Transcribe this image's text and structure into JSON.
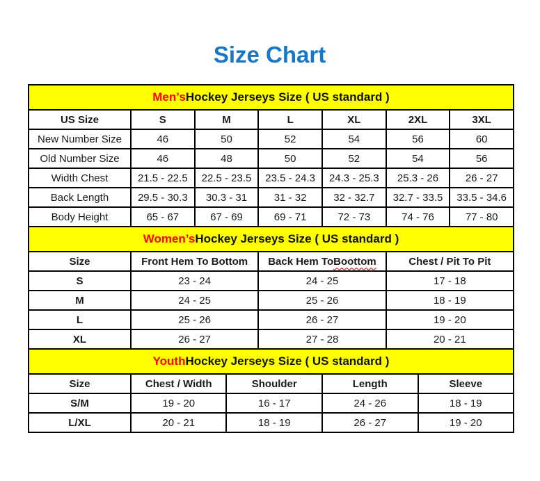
{
  "page": {
    "title": "Size Chart",
    "title_color": "#1777c4",
    "band_bg_color": "#ffff00",
    "accent_red_color": "#ff0000",
    "border_color": "#000000"
  },
  "mens": {
    "band": {
      "prefix": "Men’s",
      "rest": " Hockey Jerseys Size ( US standard )"
    },
    "headers": [
      "US Size",
      "S",
      "M",
      "L",
      "XL",
      "2XL",
      "3XL"
    ],
    "rows": [
      {
        "label": "New Number Size",
        "values": [
          "46",
          "50",
          "52",
          "54",
          "56",
          "60"
        ]
      },
      {
        "label": "Old Number Size",
        "values": [
          "46",
          "48",
          "50",
          "52",
          "54",
          "56"
        ]
      },
      {
        "label": "Width Chest",
        "values": [
          "21.5 - 22.5",
          "22.5 - 23.5",
          "23.5 - 24.3",
          "24.3 - 25.3",
          "25.3 - 26",
          "26 - 27"
        ]
      },
      {
        "label": "Back Length",
        "values": [
          "29.5 - 30.3",
          "30.3 - 31",
          "31 - 32",
          "32 - 32.7",
          "32.7 - 33.5",
          "33.5 - 34.6"
        ]
      },
      {
        "label": "Body Height",
        "values": [
          "65 - 67",
          "67 - 69",
          "69 - 71",
          "72 - 73",
          "74 - 76",
          "77 - 80"
        ]
      }
    ]
  },
  "womens": {
    "band": {
      "prefix": "Women’s",
      "rest": " Hockey Jerseys Size ( US standard )"
    },
    "headers": [
      "Size",
      "Front Hem To Bottom",
      {
        "prefix": "Back Hem To ",
        "word": "Boottom"
      },
      "Chest / Pit To Pit"
    ],
    "rows": [
      {
        "label": "S",
        "values": [
          "23 - 24",
          "24 - 25",
          "17 - 18"
        ]
      },
      {
        "label": "M",
        "values": [
          "24 - 25",
          "25 - 26",
          "18 - 19"
        ]
      },
      {
        "label": "L",
        "values": [
          "25 - 26",
          "26 - 27",
          "19 - 20"
        ]
      },
      {
        "label": "XL",
        "values": [
          "26 - 27",
          "27 - 28",
          "20 - 21"
        ]
      }
    ]
  },
  "youth": {
    "band": {
      "prefix": "Youth",
      "rest": " Hockey Jerseys Size ( US standard )"
    },
    "headers": [
      "Size",
      "Chest / Width",
      "Shoulder",
      "Length",
      "Sleeve"
    ],
    "rows": [
      {
        "label": "S/M",
        "values": [
          "19 - 20",
          "16 - 17",
          "24 - 26",
          "18 - 19"
        ]
      },
      {
        "label": "L/XL",
        "values": [
          "20 - 21",
          "18 - 19",
          "26 - 27",
          "19 - 20"
        ]
      }
    ]
  }
}
